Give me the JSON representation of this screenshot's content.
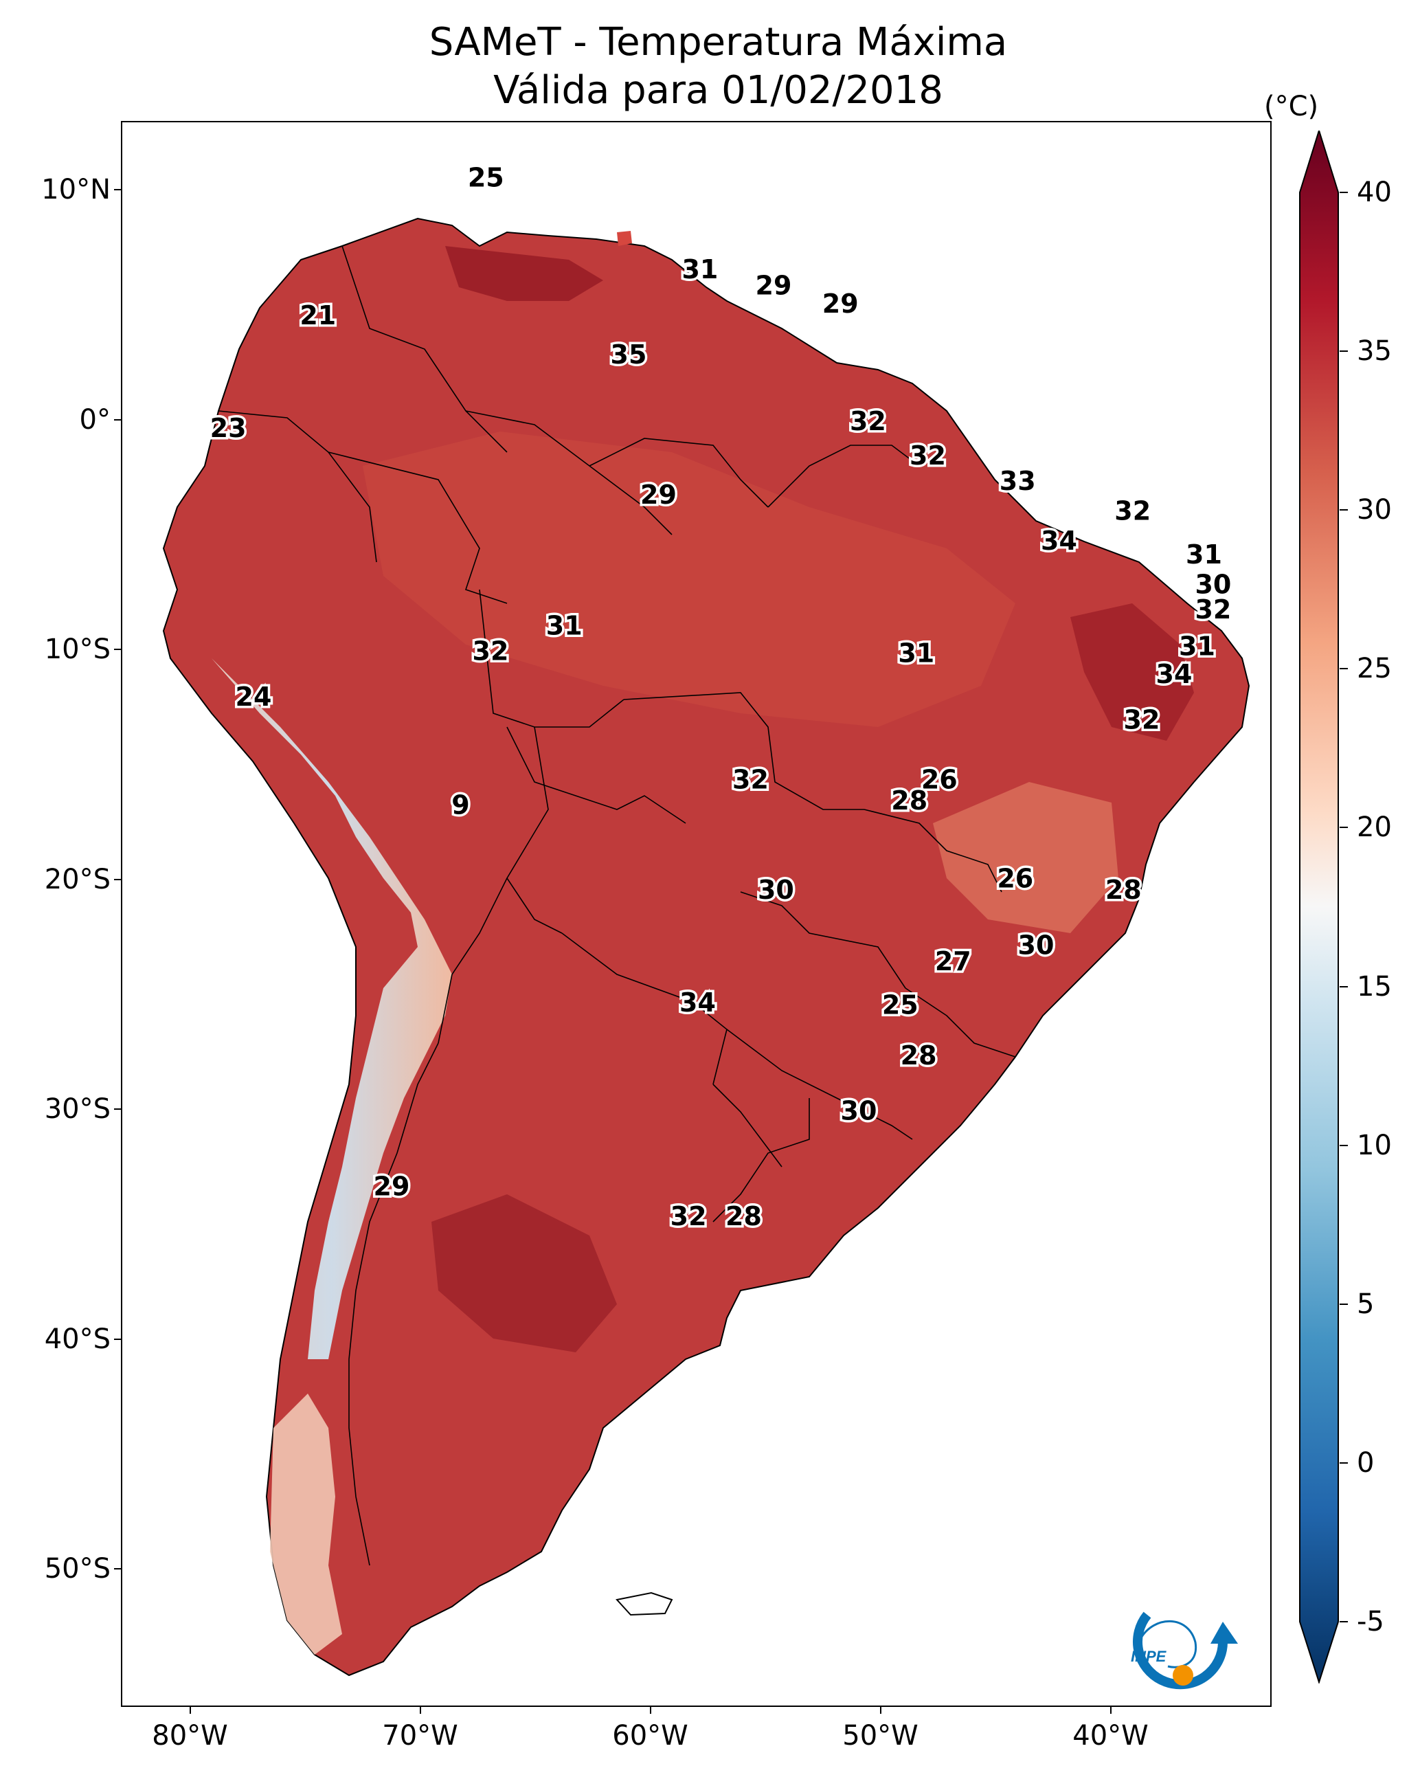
{
  "title": {
    "line1": "SAMeT - Temperatura Máxima",
    "line2": "Válida para 01/02/2018"
  },
  "map": {
    "lon_range": [
      -83,
      -33
    ],
    "lat_range": [
      -56,
      13
    ],
    "lat_ticks": [
      {
        "value": 10,
        "label": "10°N"
      },
      {
        "value": 0,
        "label": "0°"
      },
      {
        "value": -10,
        "label": "10°S"
      },
      {
        "value": -20,
        "label": "20°S"
      },
      {
        "value": -30,
        "label": "30°S"
      },
      {
        "value": -40,
        "label": "40°S"
      },
      {
        "value": -50,
        "label": "50°S"
      }
    ],
    "lon_ticks": [
      {
        "value": -80,
        "label": "80°W"
      },
      {
        "value": -70,
        "label": "70°W"
      },
      {
        "value": -60,
        "label": "60°W"
      },
      {
        "value": -50,
        "label": "50°W"
      },
      {
        "value": -40,
        "label": "40°W"
      }
    ],
    "temperature_labels": [
      {
        "lon": -67.2,
        "lat": 10.6,
        "text": "25"
      },
      {
        "lon": -74.5,
        "lat": 4.6,
        "text": "21"
      },
      {
        "lon": -78.4,
        "lat": -0.3,
        "text": "23"
      },
      {
        "lon": -57.9,
        "lat": 6.6,
        "text": "31"
      },
      {
        "lon": -54.7,
        "lat": 5.9,
        "text": "29"
      },
      {
        "lon": -51.8,
        "lat": 5.1,
        "text": "29"
      },
      {
        "lon": -61.0,
        "lat": 2.9,
        "text": "35"
      },
      {
        "lon": -50.6,
        "lat": 0.0,
        "text": "32"
      },
      {
        "lon": -48.0,
        "lat": -1.5,
        "text": "32"
      },
      {
        "lon": -44.1,
        "lat": -2.6,
        "text": "33"
      },
      {
        "lon": -59.7,
        "lat": -3.2,
        "text": "29"
      },
      {
        "lon": -39.1,
        "lat": -3.9,
        "text": "32"
      },
      {
        "lon": -42.3,
        "lat": -5.2,
        "text": "34"
      },
      {
        "lon": -36.0,
        "lat": -5.8,
        "text": "31"
      },
      {
        "lon": -35.6,
        "lat": -7.1,
        "text": "30"
      },
      {
        "lon": -35.6,
        "lat": -8.2,
        "text": "32"
      },
      {
        "lon": -63.8,
        "lat": -8.9,
        "text": "31"
      },
      {
        "lon": -67.0,
        "lat": -10.0,
        "text": "32"
      },
      {
        "lon": -48.5,
        "lat": -10.1,
        "text": "31"
      },
      {
        "lon": -36.3,
        "lat": -9.8,
        "text": "31"
      },
      {
        "lon": -37.3,
        "lat": -11.0,
        "text": "34"
      },
      {
        "lon": -77.3,
        "lat": -12.0,
        "text": "24"
      },
      {
        "lon": -38.7,
        "lat": -13.0,
        "text": "32"
      },
      {
        "lon": -55.7,
        "lat": -15.6,
        "text": "32"
      },
      {
        "lon": -47.5,
        "lat": -15.6,
        "text": "26"
      },
      {
        "lon": -48.8,
        "lat": -16.5,
        "text": "28"
      },
      {
        "lon": -68.3,
        "lat": -16.7,
        "text": "9"
      },
      {
        "lon": -54.6,
        "lat": -20.4,
        "text": "30"
      },
      {
        "lon": -44.2,
        "lat": -19.9,
        "text": "26"
      },
      {
        "lon": -39.5,
        "lat": -20.4,
        "text": "28"
      },
      {
        "lon": -43.3,
        "lat": -22.8,
        "text": "30"
      },
      {
        "lon": -46.9,
        "lat": -23.5,
        "text": "27"
      },
      {
        "lon": -58.0,
        "lat": -25.3,
        "text": "34"
      },
      {
        "lon": -49.2,
        "lat": -25.4,
        "text": "25"
      },
      {
        "lon": -48.4,
        "lat": -27.6,
        "text": "28"
      },
      {
        "lon": -51.0,
        "lat": -30.0,
        "text": "30"
      },
      {
        "lon": -71.3,
        "lat": -33.3,
        "text": "29"
      },
      {
        "lon": -58.4,
        "lat": -34.6,
        "text": "32"
      },
      {
        "lon": -56.0,
        "lat": -34.6,
        "text": "28"
      }
    ]
  },
  "colorbar": {
    "unit": "(°C)",
    "min": -5,
    "max": 40,
    "colormap": "RdBu_r",
    "ticks": [
      {
        "value": 40,
        "label": "40"
      },
      {
        "value": 35,
        "label": "35"
      },
      {
        "value": 30,
        "label": "30"
      },
      {
        "value": 25,
        "label": "25"
      },
      {
        "value": 20,
        "label": "20"
      },
      {
        "value": 15,
        "label": "15"
      },
      {
        "value": 10,
        "label": "10"
      },
      {
        "value": 5,
        "label": "5"
      },
      {
        "value": 0,
        "label": "0"
      },
      {
        "value": -5,
        "label": "-5"
      }
    ]
  },
  "logo": {
    "text": "INPE",
    "colors": {
      "blue": "#0a73b7",
      "orange": "#f39200"
    }
  },
  "colors": {
    "hot": "#a71f28",
    "warm": "#d0533f",
    "mild": "#f4b596",
    "cool": "#e6eef5",
    "cold": "#b6d6ea"
  }
}
